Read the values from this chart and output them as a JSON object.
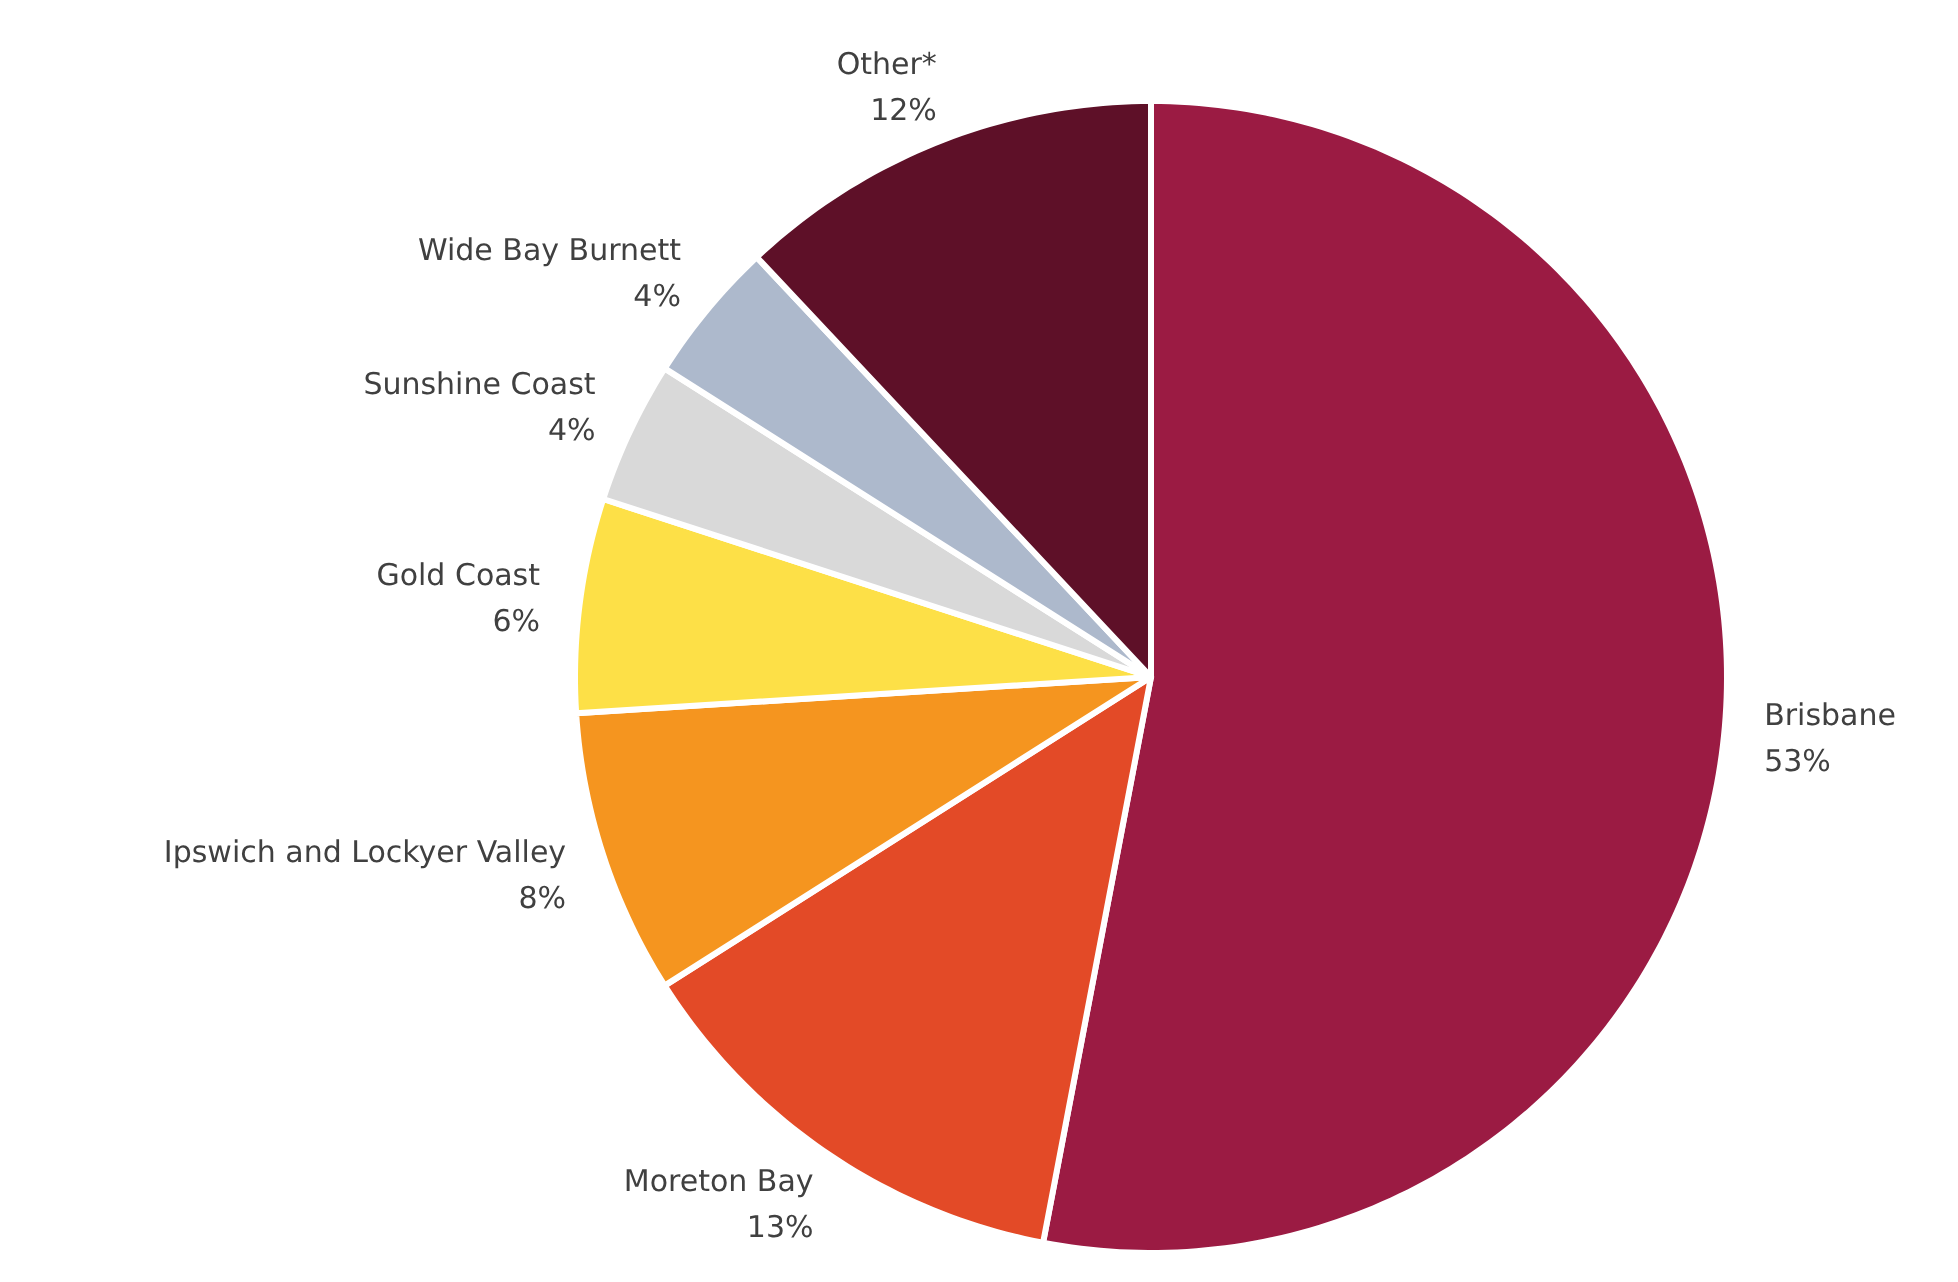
{
  "chart_data": {
    "type": "pie",
    "categories": [
      "Brisbane",
      "Moreton Bay",
      "Ipswich and Lockyer Valley",
      "Gold Coast",
      "Sunshine Coast",
      "Wide Bay Burnett",
      "Other*"
    ],
    "values": [
      53,
      13,
      8,
      6,
      4,
      4,
      12
    ],
    "value_labels": [
      "53%",
      "13%",
      "8%",
      "6%",
      "4%",
      "4%",
      "12%"
    ],
    "colors": [
      "#9b1b43",
      "#e34a27",
      "#f5951f",
      "#fde047",
      "#d9d9d9",
      "#adb9cc",
      "#5e1028"
    ]
  }
}
